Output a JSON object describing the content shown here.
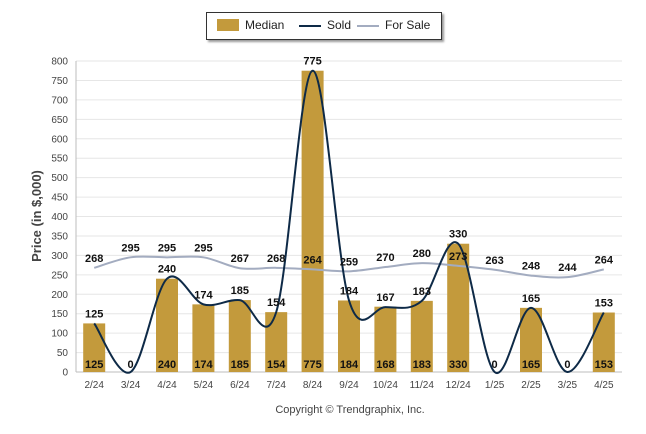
{
  "chart_data": {
    "type": "bar",
    "categories": [
      "2/24",
      "3/24",
      "4/24",
      "5/24",
      "6/24",
      "7/24",
      "8/24",
      "9/24",
      "10/24",
      "11/24",
      "12/24",
      "1/25",
      "2/25",
      "3/25",
      "4/25"
    ],
    "ylabel": "Price (in $,000)",
    "ylim": [
      0,
      800
    ],
    "yticks": [
      0,
      50,
      100,
      150,
      200,
      250,
      300,
      350,
      400,
      450,
      500,
      550,
      600,
      650,
      700,
      750,
      800
    ],
    "grid": true,
    "legend_position": "top-center",
    "series": [
      {
        "name": "Median",
        "kind": "bar",
        "color": "#c39a3c",
        "values": [
          125,
          0,
          240,
          174,
          185,
          154,
          775,
          184,
          168,
          183,
          330,
          0,
          165,
          0,
          153
        ],
        "labels": [
          "125",
          "0",
          "240",
          "174",
          "185",
          "154",
          "775",
          "184",
          "168",
          "183",
          "330",
          "0",
          "165",
          "0",
          "153"
        ]
      },
      {
        "name": "Sold",
        "kind": "line",
        "color": "#0e2a47",
        "values": [
          125,
          0,
          240,
          174,
          185,
          154,
          775,
          184,
          167,
          183,
          330,
          0,
          165,
          0,
          153
        ],
        "labels": [
          "125",
          "",
          "240",
          "174",
          "185",
          "154",
          "775",
          "184",
          "167",
          "183",
          "330",
          "",
          "165",
          "",
          "153"
        ]
      },
      {
        "name": "For Sale",
        "kind": "line",
        "color": "#a3acc0",
        "values": [
          268,
          295,
          295,
          295,
          267,
          268,
          264,
          259,
          270,
          280,
          273,
          263,
          248,
          244,
          264
        ],
        "labels": [
          "268",
          "295",
          "295",
          "295",
          "267",
          "268",
          "264",
          "259",
          "270",
          "280",
          "273",
          "263",
          "248",
          "244",
          "264"
        ]
      }
    ]
  },
  "copyright": "Copyright © Trendgraphix, Inc."
}
